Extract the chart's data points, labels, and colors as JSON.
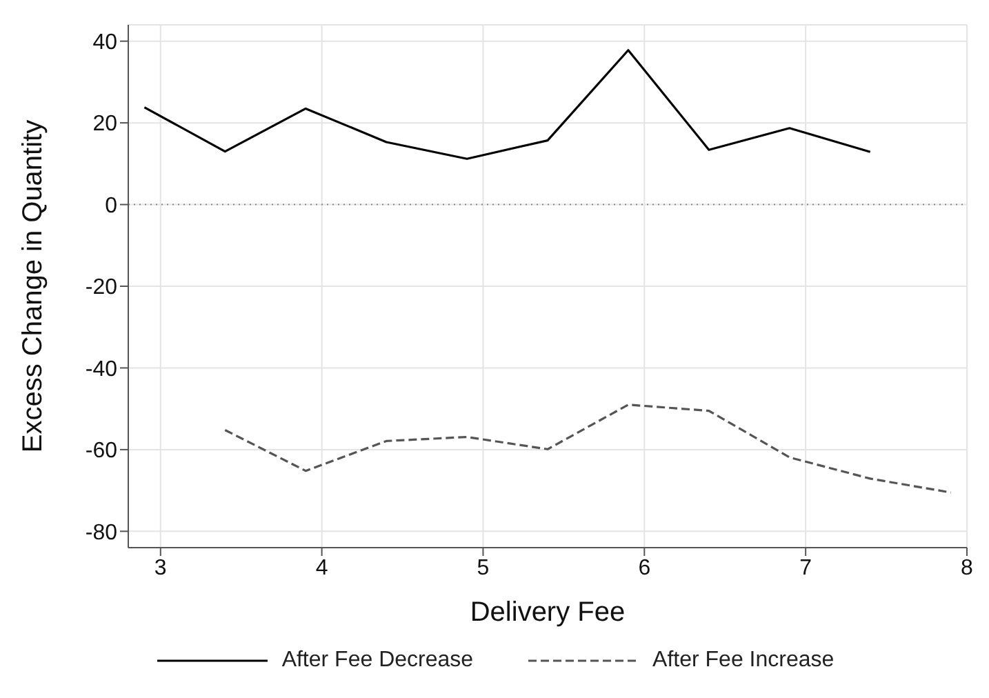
{
  "chart_data": {
    "type": "line",
    "xlabel": "Delivery Fee",
    "ylabel": "Excess Change in Quantity",
    "xlim": [
      2.8,
      8
    ],
    "xticks": [
      3,
      4,
      5,
      6,
      7,
      8
    ],
    "ylim": [
      -84,
      44
    ],
    "yticks": [
      -80,
      -60,
      -40,
      -20,
      0,
      20,
      40
    ],
    "grid": true,
    "legend": "bottom",
    "marker": "none",
    "ref_lines": [
      {
        "axis": "y",
        "value": 0,
        "color": "#888888",
        "line_style": "dotted"
      }
    ],
    "series": [
      {
        "name": "After Fee Decrease",
        "color": "#000000",
        "line_style": "solid",
        "x": [
          2.9,
          3.4,
          3.9,
          4.4,
          4.9,
          5.4,
          5.9,
          6.4,
          6.9,
          7.4
        ],
        "values": [
          23.8,
          13.0,
          23.5,
          15.3,
          11.2,
          15.7,
          37.8,
          13.4,
          18.7,
          12.9
        ]
      },
      {
        "name": "After Fee Increase",
        "color": "#555555",
        "line_style": "dashed",
        "x": [
          3.4,
          3.9,
          4.4,
          4.9,
          5.4,
          5.9,
          6.4,
          6.9,
          7.4,
          7.9
        ],
        "values": [
          -55.2,
          -65.2,
          -57.9,
          -56.9,
          -59.9,
          -49.0,
          -50.5,
          -61.9,
          -67.1,
          -70.5
        ]
      }
    ]
  }
}
